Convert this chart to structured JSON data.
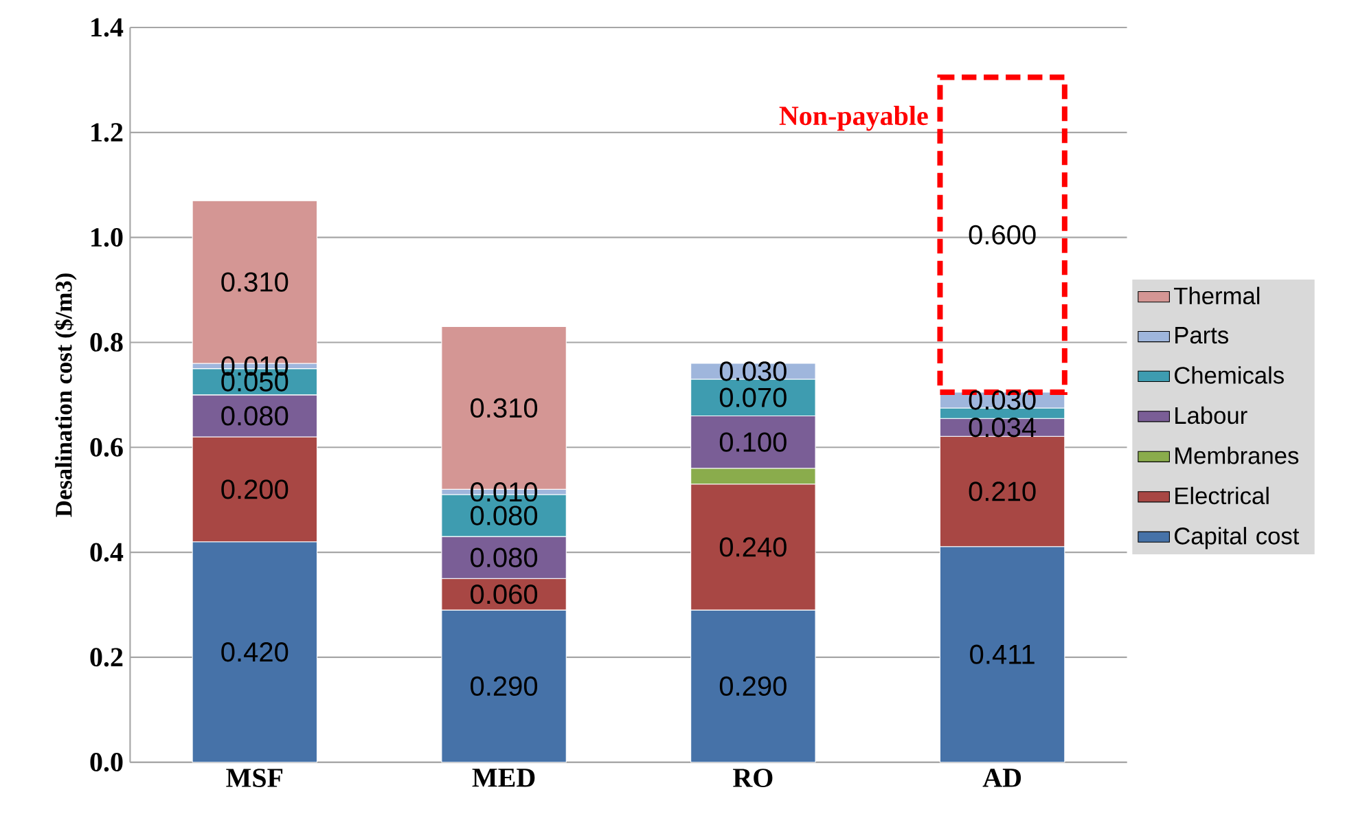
{
  "chart_data": {
    "type": "bar",
    "stacked": true,
    "ylabel": "Desalination cost ($/m3)",
    "categories": [
      "MSF",
      "MED",
      "RO",
      "AD"
    ],
    "series": [
      {
        "name": "Capital cost",
        "color": "#4672a8",
        "values": [
          0.42,
          0.29,
          0.29,
          0.411
        ],
        "value_labels": [
          "0.420",
          "0.290",
          "0.290",
          "0.411"
        ]
      },
      {
        "name": "Electrical",
        "color": "#a84744",
        "values": [
          0.2,
          0.06,
          0.24,
          0.21
        ],
        "value_labels": [
          "0.200",
          "0.060",
          "0.240",
          "0.210"
        ]
      },
      {
        "name": "Membranes",
        "color": "#8aac4c",
        "values": [
          null,
          null,
          0.03,
          null
        ],
        "value_labels": [
          null,
          null,
          null,
          null
        ]
      },
      {
        "name": "Labour",
        "color": "#7a5e96",
        "values": [
          0.08,
          0.08,
          0.1,
          0.034
        ],
        "value_labels": [
          "0.080",
          "0.080",
          "0.100",
          "0.034"
        ]
      },
      {
        "name": "Chemicals",
        "color": "#3e9cb0",
        "values": [
          0.05,
          0.08,
          0.07,
          0.02
        ],
        "value_labels": [
          "0.050",
          "0.080",
          "0.070",
          null
        ]
      },
      {
        "name": "Parts",
        "color": "#9fb6dc",
        "values": [
          0.01,
          0.01,
          0.03,
          0.03
        ],
        "value_labels": [
          "0.010",
          "0.010",
          "0.030",
          "0.030"
        ]
      },
      {
        "name": "Thermal",
        "color": "#d49694",
        "colors": [
          "#d49694",
          "#d49694",
          null,
          "#ff0000"
        ],
        "values": [
          0.31,
          0.31,
          null,
          0.6
        ],
        "value_labels": [
          "0.310",
          "0.310",
          null,
          "0.600"
        ]
      }
    ],
    "annotations": [
      {
        "text": "Non-payable",
        "x": "AD",
        "y": 1.305
      }
    ],
    "ylim": [
      0,
      1.4
    ],
    "yticks": [
      {
        "value": 0,
        "label": "0.0"
      },
      {
        "value": 0.2,
        "label": "0.2"
      },
      {
        "value": 0.4,
        "label": "0.4"
      },
      {
        "value": 0.6,
        "label": "0.6"
      },
      {
        "value": 0.8,
        "label": "0.8"
      },
      {
        "value": 1.0,
        "label": "1.0"
      },
      {
        "value": 1.2,
        "label": "1.2"
      },
      {
        "value": 1.4,
        "label": "1.4"
      }
    ],
    "grid": "y",
    "legend": "right"
  }
}
